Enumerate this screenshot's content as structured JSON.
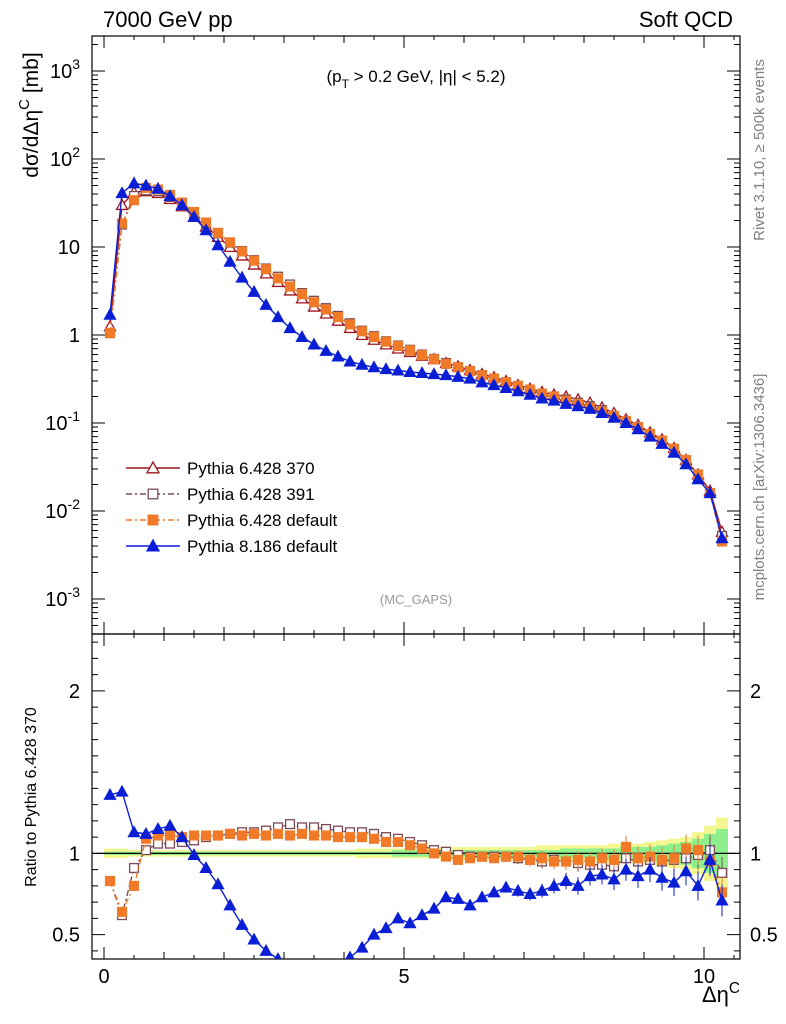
{
  "header": {
    "left": "7000 GeV pp",
    "right": "Soft QCD"
  },
  "side_labels": {
    "rivet": "Rivet 3.1.10, ≥ 500k events",
    "mcplots": "mcplots.cern.ch [arXiv:1306.3436]"
  },
  "chart_data": [
    {
      "type": "line",
      "annotation": "(p_T > 0.2 GeV, |η| < 5.2)",
      "watermark": "(MC_GAPS)",
      "ylabel": "dσ/dΔη^C [mb]",
      "xlabel": "Δη^C",
      "yscale": "log",
      "xlim": [
        -0.2,
        10.6
      ],
      "ylim": [
        0.0004,
        2500
      ],
      "yticks": [
        {
          "v": 0.001,
          "label": "10^-3"
        },
        {
          "v": 0.01,
          "label": "10^-2"
        },
        {
          "v": 0.1,
          "label": "10^-1"
        },
        {
          "v": 1,
          "label": "1"
        },
        {
          "v": 10,
          "label": "10"
        },
        {
          "v": 100,
          "label": "10^2"
        },
        {
          "v": 1000,
          "label": "10^3"
        }
      ],
      "legend": "bottom-left",
      "series": [
        {
          "name": "Pythia 6.428 370",
          "color": "#a0141e",
          "marker": "triangle-open",
          "dash": "",
          "x": [
            0.1,
            0.3,
            0.5,
            0.7,
            0.9,
            1.1,
            1.3,
            1.5,
            1.7,
            1.9,
            2.1,
            2.3,
            2.5,
            2.7,
            2.9,
            3.1,
            3.3,
            3.5,
            3.7,
            3.9,
            4.1,
            4.3,
            4.5,
            4.7,
            4.9,
            5.1,
            5.3,
            5.5,
            5.7,
            5.9,
            6.1,
            6.3,
            6.5,
            6.7,
            6.9,
            7.1,
            7.3,
            7.5,
            7.7,
            7.9,
            8.1,
            8.3,
            8.5,
            8.7,
            8.9,
            9.1,
            9.3,
            9.5,
            9.7,
            9.9,
            10.1,
            10.3
          ],
          "y": [
            1.25,
            30,
            42,
            43,
            41,
            35,
            29,
            22,
            17,
            13,
            10,
            8,
            6.3,
            5.0,
            4.0,
            3.2,
            2.6,
            2.1,
            1.75,
            1.45,
            1.2,
            1.0,
            0.88,
            0.78,
            0.7,
            0.64,
            0.58,
            0.53,
            0.48,
            0.44,
            0.4,
            0.36,
            0.33,
            0.3,
            0.27,
            0.245,
            0.225,
            0.21,
            0.2,
            0.185,
            0.17,
            0.15,
            0.13,
            0.11,
            0.095,
            0.078,
            0.065,
            0.052,
            0.038,
            0.026,
            0.017,
            0.0058
          ]
        },
        {
          "name": "Pythia 6.428 391",
          "color": "#7a4a55",
          "marker": "square-open",
          "dash": "6,3,2,3",
          "x": [
            0.1,
            0.3,
            0.5,
            0.7,
            0.9,
            1.1,
            1.3,
            1.5,
            1.7,
            1.9,
            2.1,
            2.3,
            2.5,
            2.7,
            2.9,
            3.1,
            3.3,
            3.5,
            3.7,
            3.9,
            4.1,
            4.3,
            4.5,
            4.7,
            4.9,
            5.1,
            5.3,
            5.5,
            5.7,
            5.9,
            6.1,
            6.3,
            6.5,
            6.7,
            6.9,
            7.1,
            7.3,
            7.5,
            7.7,
            7.9,
            8.1,
            8.3,
            8.5,
            8.7,
            8.9,
            9.1,
            9.3,
            9.5,
            9.7,
            9.9,
            10.1,
            10.3
          ],
          "y": [
            1.05,
            18,
            38,
            44,
            43,
            37,
            31,
            24,
            18.5,
            14.3,
            11.2,
            9.0,
            7.1,
            5.7,
            4.6,
            3.75,
            3.0,
            2.45,
            2.02,
            1.65,
            1.36,
            1.12,
            0.97,
            0.85,
            0.76,
            0.68,
            0.6,
            0.535,
            0.48,
            0.43,
            0.39,
            0.35,
            0.32,
            0.29,
            0.26,
            0.235,
            0.215,
            0.2,
            0.185,
            0.17,
            0.155,
            0.14,
            0.12,
            0.105,
            0.09,
            0.075,
            0.062,
            0.05,
            0.037,
            0.025,
            0.016,
            0.0052
          ]
        },
        {
          "name": "Pythia 6.428 default",
          "color": "#f07a28",
          "marker": "square-filled",
          "dash": "6,3,2,3",
          "x": [
            0.1,
            0.3,
            0.5,
            0.7,
            0.9,
            1.1,
            1.3,
            1.5,
            1.7,
            1.9,
            2.1,
            2.3,
            2.5,
            2.7,
            2.9,
            3.1,
            3.3,
            3.5,
            3.7,
            3.9,
            4.1,
            4.3,
            4.5,
            4.7,
            4.9,
            5.1,
            5.3,
            5.5,
            5.7,
            5.9,
            6.1,
            6.3,
            6.5,
            6.7,
            6.9,
            7.1,
            7.3,
            7.5,
            7.7,
            7.9,
            8.1,
            8.3,
            8.5,
            8.7,
            8.9,
            9.1,
            9.3,
            9.5,
            9.7,
            9.9,
            10.1,
            10.3
          ],
          "y": [
            1.05,
            18.5,
            34,
            47,
            45,
            39,
            32,
            25,
            19,
            14.5,
            11.3,
            8.9,
            7.0,
            5.6,
            4.4,
            3.55,
            2.9,
            2.35,
            1.95,
            1.6,
            1.32,
            1.1,
            0.95,
            0.84,
            0.75,
            0.67,
            0.59,
            0.53,
            0.47,
            0.43,
            0.39,
            0.35,
            0.32,
            0.29,
            0.265,
            0.24,
            0.215,
            0.2,
            0.18,
            0.165,
            0.15,
            0.135,
            0.12,
            0.105,
            0.09,
            0.075,
            0.063,
            0.051,
            0.038,
            0.026,
            0.016,
            0.0045
          ]
        },
        {
          "name": "Pythia 8.186 default",
          "color": "#0a1ed6",
          "marker": "triangle-filled",
          "dash": "",
          "x": [
            0.1,
            0.3,
            0.5,
            0.7,
            0.9,
            1.1,
            1.3,
            1.5,
            1.7,
            1.9,
            2.1,
            2.3,
            2.5,
            2.7,
            2.9,
            3.1,
            3.3,
            3.5,
            3.7,
            3.9,
            4.1,
            4.3,
            4.5,
            4.7,
            4.9,
            5.1,
            5.3,
            5.5,
            5.7,
            5.9,
            6.1,
            6.3,
            6.5,
            6.7,
            6.9,
            7.1,
            7.3,
            7.5,
            7.7,
            7.9,
            8.1,
            8.3,
            8.5,
            8.7,
            8.9,
            9.1,
            9.3,
            9.5,
            9.7,
            9.9,
            10.1,
            10.3
          ],
          "y": [
            1.7,
            41,
            53,
            50,
            46,
            38,
            30,
            22,
            15.5,
            10.5,
            6.8,
            4.5,
            3.1,
            2.2,
            1.6,
            1.2,
            0.95,
            0.78,
            0.66,
            0.57,
            0.5,
            0.46,
            0.43,
            0.41,
            0.395,
            0.38,
            0.37,
            0.36,
            0.35,
            0.335,
            0.32,
            0.29,
            0.27,
            0.25,
            0.23,
            0.21,
            0.19,
            0.18,
            0.165,
            0.155,
            0.145,
            0.13,
            0.115,
            0.1,
            0.085,
            0.07,
            0.058,
            0.046,
            0.034,
            0.023,
            0.016,
            0.0049
          ]
        }
      ]
    },
    {
      "type": "line",
      "ylabel": "Ratio to Pythia 6.428 370",
      "xlabel": "Δη^C",
      "xlim": [
        -0.2,
        10.6
      ],
      "ylim": [
        0.35,
        2.35
      ],
      "xticks": [
        0,
        5,
        10
      ],
      "yticks": [
        0.5,
        1,
        2
      ],
      "reference": 1,
      "series": [
        {
          "name": "Pythia 6.428 391",
          "color": "#7a4a55",
          "marker": "square-open",
          "dash": "6,3,2,3",
          "x": [
            0.1,
            0.3,
            0.5,
            0.7,
            0.9,
            1.1,
            1.3,
            1.5,
            1.7,
            1.9,
            2.1,
            2.3,
            2.5,
            2.7,
            2.9,
            3.1,
            3.3,
            3.5,
            3.7,
            3.9,
            4.1,
            4.3,
            4.5,
            4.7,
            4.9,
            5.1,
            5.3,
            5.5,
            5.7,
            5.9,
            6.1,
            6.3,
            6.5,
            6.7,
            6.9,
            7.1,
            7.3,
            7.5,
            7.7,
            7.9,
            8.1,
            8.3,
            8.5,
            8.7,
            8.9,
            9.1,
            9.3,
            9.5,
            9.7,
            9.9,
            10.1,
            10.3
          ],
          "y": [
            0.83,
            0.62,
            0.91,
            1.02,
            1.06,
            1.06,
            1.07,
            1.08,
            1.1,
            1.11,
            1.12,
            1.13,
            1.13,
            1.14,
            1.16,
            1.18,
            1.16,
            1.16,
            1.15,
            1.14,
            1.13,
            1.13,
            1.12,
            1.1,
            1.09,
            1.07,
            1.05,
            1.02,
            1.01,
            0.99,
            0.98,
            0.98,
            0.98,
            0.98,
            0.97,
            0.96,
            0.95,
            0.96,
            0.95,
            0.94,
            0.93,
            0.93,
            0.92,
            0.97,
            0.95,
            0.96,
            0.95,
            0.96,
            0.97,
            0.99,
            1.02,
            0.88
          ]
        },
        {
          "name": "Pythia 6.428 default",
          "color": "#f07a28",
          "marker": "square-filled",
          "dash": "6,3,2,3",
          "x": [
            0.1,
            0.3,
            0.5,
            0.7,
            0.9,
            1.1,
            1.3,
            1.5,
            1.7,
            1.9,
            2.1,
            2.3,
            2.5,
            2.7,
            2.9,
            3.1,
            3.3,
            3.5,
            3.7,
            3.9,
            4.1,
            4.3,
            4.5,
            4.7,
            4.9,
            5.1,
            5.3,
            5.5,
            5.7,
            5.9,
            6.1,
            6.3,
            6.5,
            6.7,
            6.9,
            7.1,
            7.3,
            7.5,
            7.7,
            7.9,
            8.1,
            8.3,
            8.5,
            8.7,
            8.9,
            9.1,
            9.3,
            9.5,
            9.7,
            9.9,
            10.1,
            10.3
          ],
          "y": [
            0.83,
            0.64,
            0.8,
            1.09,
            1.11,
            1.11,
            1.1,
            1.11,
            1.11,
            1.11,
            1.12,
            1.11,
            1.12,
            1.11,
            1.12,
            1.11,
            1.12,
            1.11,
            1.11,
            1.1,
            1.1,
            1.1,
            1.09,
            1.07,
            1.07,
            1.05,
            1.03,
            1.0,
            0.98,
            0.96,
            0.97,
            0.98,
            0.97,
            0.98,
            0.98,
            0.96,
            0.97,
            0.95,
            0.95,
            0.96,
            0.95,
            0.97,
            0.96,
            1.04,
            0.97,
            0.98,
            0.96,
            0.97,
            1.03,
            1.02,
            0.95,
            0.76
          ]
        },
        {
          "name": "Pythia 8.186 default",
          "color": "#0a1ed6",
          "marker": "triangle-filled",
          "dash": "",
          "x": [
            0.1,
            0.3,
            0.5,
            0.7,
            0.9,
            1.1,
            1.3,
            1.5,
            1.7,
            1.9,
            2.1,
            2.3,
            2.5,
            2.7,
            2.9,
            3.1,
            3.3,
            3.5,
            3.7,
            3.9,
            4.1,
            4.3,
            4.5,
            4.7,
            4.9,
            5.1,
            5.3,
            5.5,
            5.7,
            5.9,
            6.1,
            6.3,
            6.5,
            6.7,
            6.9,
            7.1,
            7.3,
            7.5,
            7.7,
            7.9,
            8.1,
            8.3,
            8.5,
            8.7,
            8.9,
            9.1,
            9.3,
            9.5,
            9.7,
            9.9,
            10.1,
            10.3
          ],
          "y": [
            1.36,
            1.38,
            1.13,
            1.12,
            1.15,
            1.17,
            1.1,
            0.99,
            0.91,
            0.81,
            0.68,
            0.56,
            0.47,
            0.4,
            0.35,
            0.3,
            0.27,
            0.27,
            0.28,
            0.29,
            0.36,
            0.42,
            0.5,
            0.54,
            0.6,
            0.57,
            0.62,
            0.66,
            0.73,
            0.72,
            0.68,
            0.73,
            0.76,
            0.79,
            0.77,
            0.75,
            0.77,
            0.8,
            0.83,
            0.8,
            0.86,
            0.87,
            0.84,
            0.9,
            0.86,
            0.9,
            0.85,
            0.82,
            0.89,
            0.8,
            0.96,
            0.71
          ]
        }
      ],
      "bands": {
        "yellow": [
          0.03,
          0.03,
          0.02,
          0.02,
          0.02,
          0.02,
          0.02,
          0.02,
          0.02,
          0.02,
          0.02,
          0.02,
          0.02,
          0.02,
          0.02,
          0.02,
          0.02,
          0.02,
          0.02,
          0.02,
          0.02,
          0.03,
          0.03,
          0.03,
          0.03,
          0.03,
          0.03,
          0.03,
          0.04,
          0.04,
          0.04,
          0.04,
          0.04,
          0.04,
          0.04,
          0.04,
          0.05,
          0.05,
          0.05,
          0.05,
          0.05,
          0.05,
          0.06,
          0.06,
          0.06,
          0.07,
          0.08,
          0.09,
          0.1,
          0.13,
          0.17,
          0.22
        ],
        "green": [
          0.01,
          0.01,
          0.01,
          0.01,
          0.01,
          0.01,
          0.01,
          0.01,
          0.01,
          0.01,
          0.01,
          0.01,
          0.01,
          0.01,
          0.01,
          0.01,
          0.01,
          0.01,
          0.01,
          0.01,
          0.01,
          0.01,
          0.01,
          0.01,
          0.02,
          0.02,
          0.02,
          0.02,
          0.02,
          0.02,
          0.02,
          0.02,
          0.02,
          0.02,
          0.02,
          0.02,
          0.02,
          0.02,
          0.03,
          0.03,
          0.03,
          0.03,
          0.03,
          0.04,
          0.04,
          0.04,
          0.05,
          0.06,
          0.07,
          0.09,
          0.12,
          0.15
        ]
      }
    }
  ]
}
